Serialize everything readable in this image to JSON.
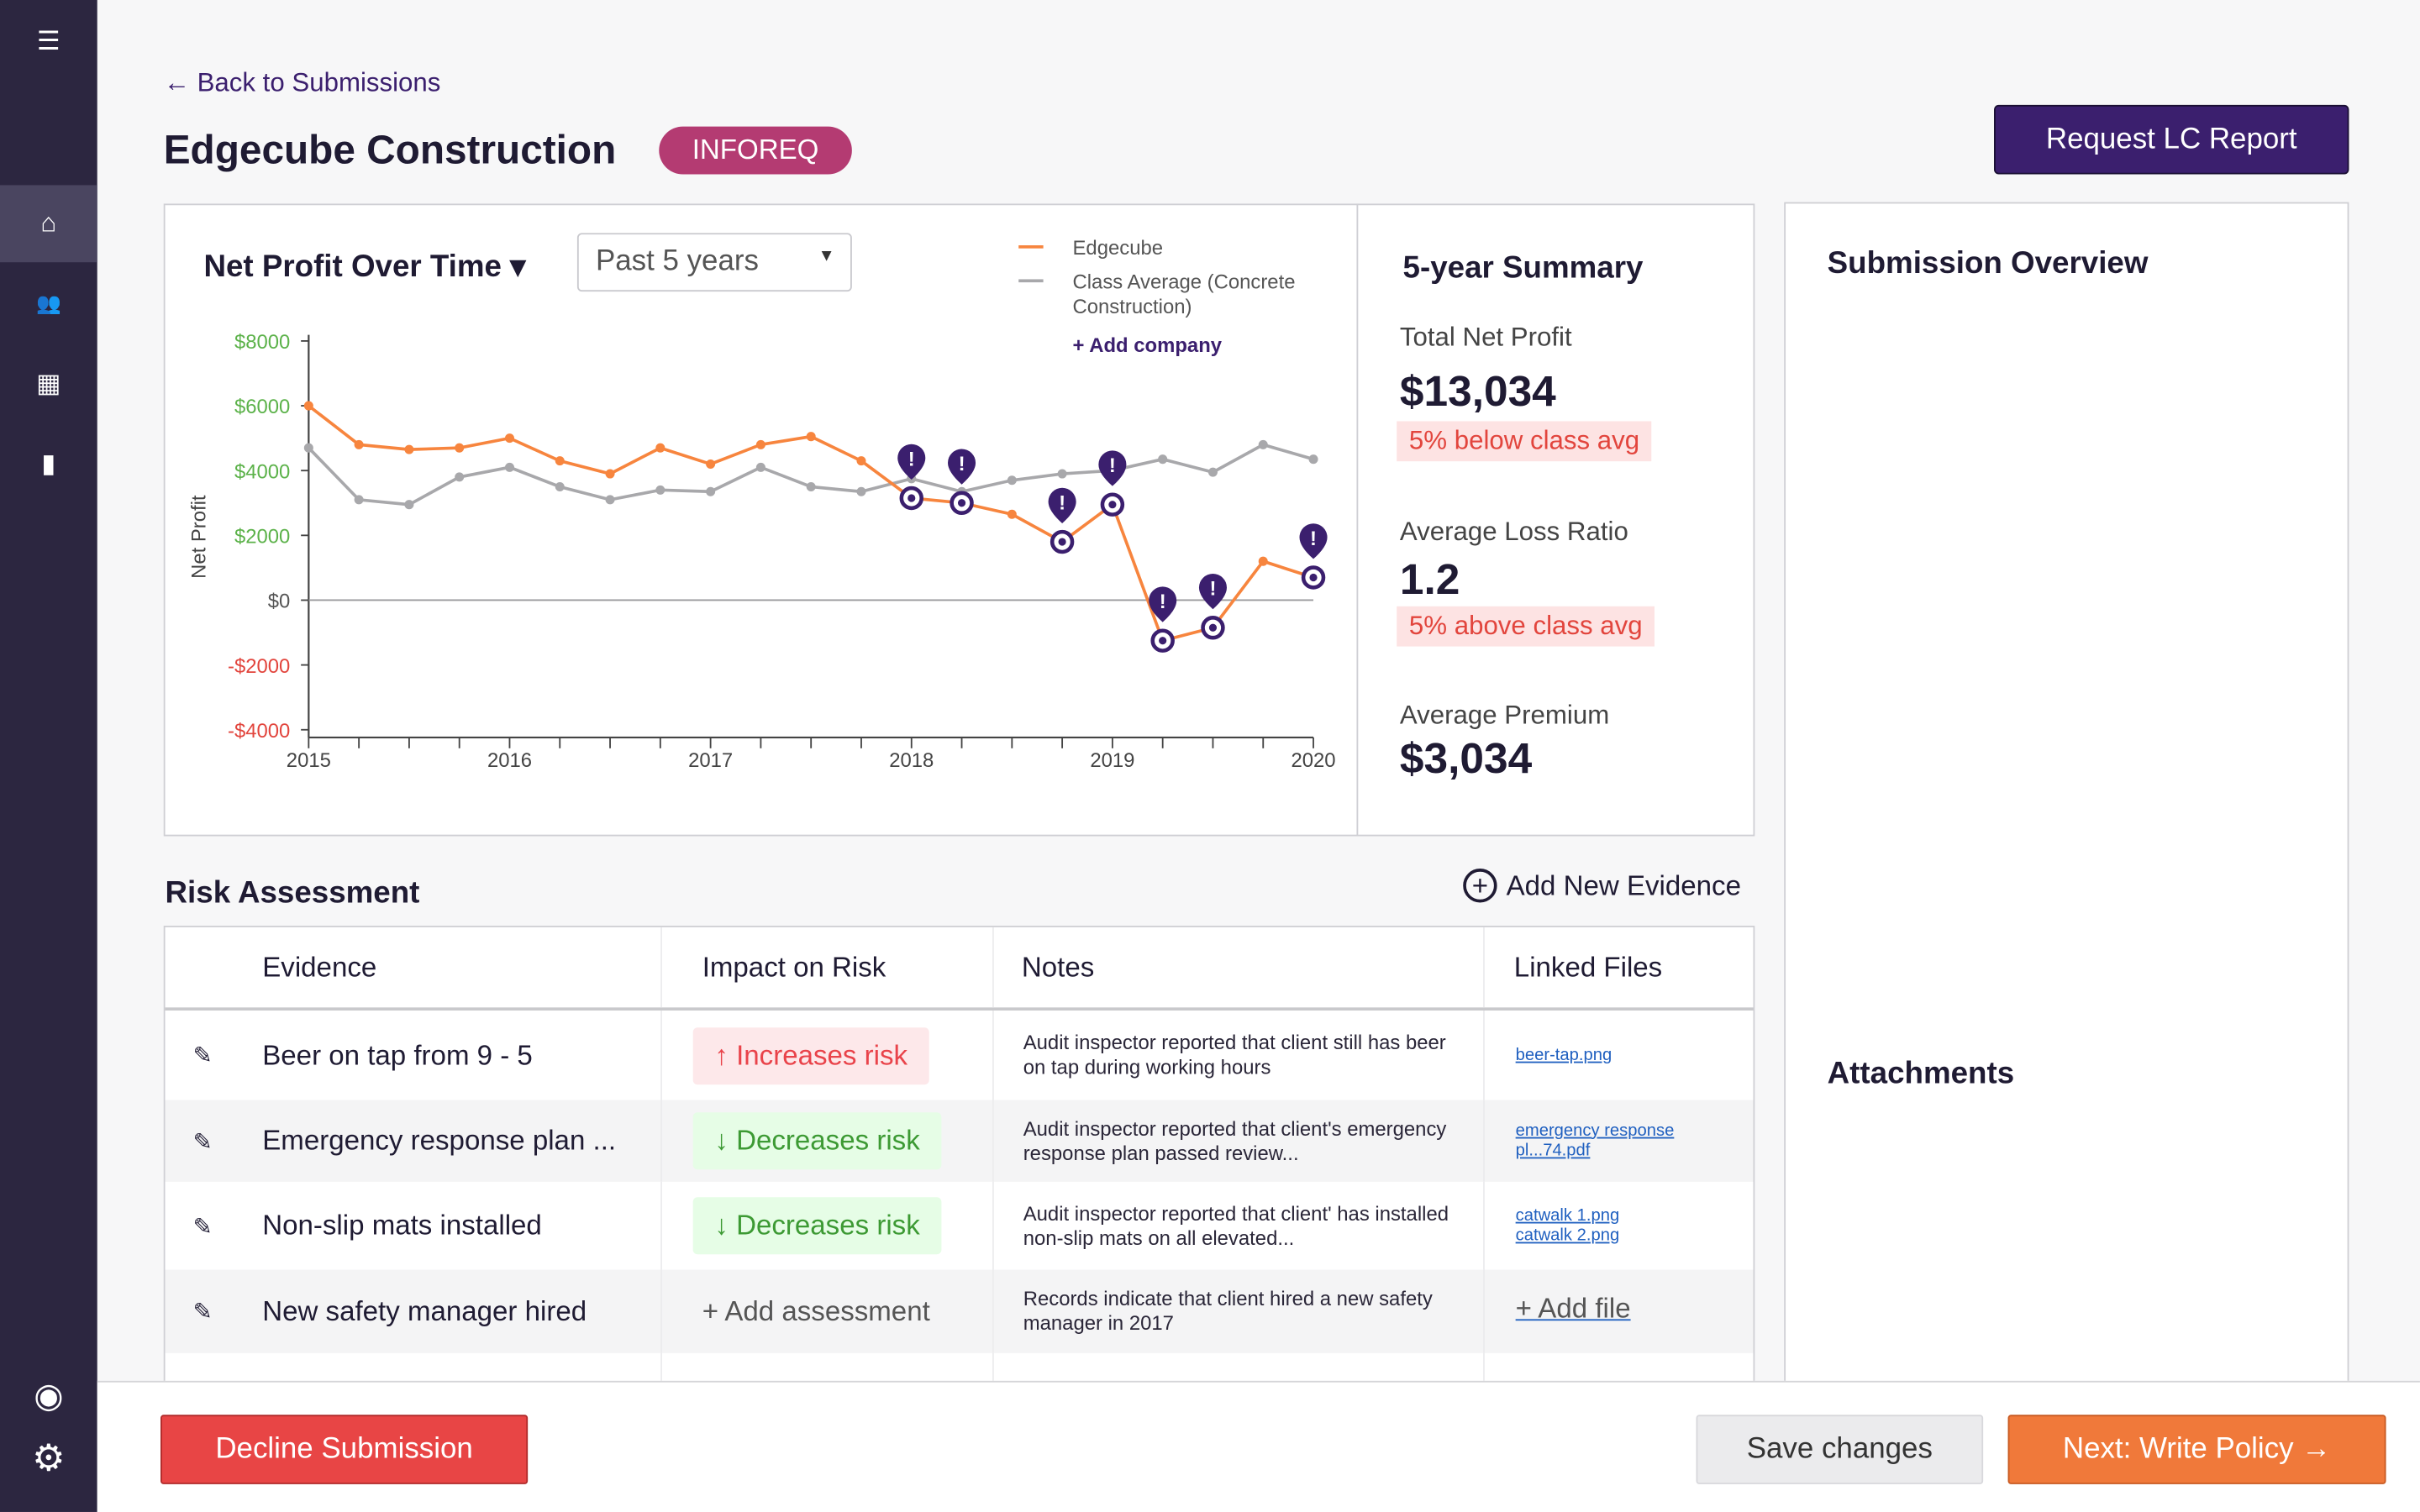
{
  "sidebar": {
    "items": [
      {
        "icon": "menu-icon",
        "glyph": "☰"
      },
      {
        "icon": "home-icon",
        "glyph": "⌂"
      },
      {
        "icon": "users-icon",
        "glyph": "👥"
      },
      {
        "icon": "calculator-icon",
        "glyph": "▦"
      },
      {
        "icon": "clipboard-icon",
        "glyph": "▮"
      }
    ],
    "bottom": [
      {
        "icon": "account-icon",
        "glyph": "◉"
      },
      {
        "icon": "settings-icon",
        "glyph": "⚙"
      }
    ]
  },
  "header": {
    "back_label": "← Back to Submissions",
    "title": "Edgecube Construction",
    "badge": "INFOREQ",
    "request_button": "Request LC Report"
  },
  "chart_panel": {
    "title": "Net Profit Over Time ▾",
    "range_select": "Past 5 years",
    "add_company": "+ Add company"
  },
  "chart_data": {
    "type": "line",
    "ylabel": "Net Profit",
    "ylim": [
      -4250,
      8000
    ],
    "yticks": [
      {
        "value": 8000,
        "label": "$8000"
      },
      {
        "value": 6000,
        "label": "$6000"
      },
      {
        "value": 4000,
        "label": "$4000"
      },
      {
        "value": 2000,
        "label": "$2000"
      },
      {
        "value": 0,
        "label": "$0"
      },
      {
        "value": -2000,
        "label": "-$2000"
      },
      {
        "value": -4000,
        "label": "-$4000"
      }
    ],
    "xticks": [
      "2015",
      "2016",
      "2017",
      "2018",
      "2019",
      "2020"
    ],
    "x": [
      2015,
      2015.25,
      2015.5,
      2015.75,
      2016,
      2016.25,
      2016.5,
      2016.75,
      2017,
      2017.25,
      2017.5,
      2017.75,
      2018,
      2018.25,
      2018.5,
      2018.75,
      2019,
      2019.25,
      2019.5,
      2019.75,
      2020
    ],
    "series": [
      {
        "name": "Edgecube",
        "color": "#f7853e",
        "values": [
          6000,
          4800,
          4650,
          4700,
          5000,
          4300,
          3900,
          4700,
          4200,
          4800,
          5050,
          4300,
          3150,
          3000,
          2650,
          1800,
          2950,
          -1250,
          -850,
          1200,
          700
        ],
        "flagged": [
          12,
          13,
          15,
          16,
          17,
          18,
          20
        ]
      },
      {
        "name": "Class Average (Concrete Construction)",
        "color": "#a8a8ab",
        "values": [
          4700,
          3100,
          2950,
          3800,
          4100,
          3500,
          3100,
          3400,
          3350,
          4100,
          3500,
          3350,
          3750,
          3350,
          3700,
          3900,
          4000,
          4350,
          3950,
          4800,
          4350
        ]
      }
    ],
    "grid": false,
    "legend": "top-right"
  },
  "summary": {
    "title": "5-year Summary",
    "items": [
      {
        "label": "Total Net Profit",
        "value": "$13,034",
        "note": "5% below class avg"
      },
      {
        "label": "Average Loss Ratio",
        "value": "1.2",
        "note": "5% above class avg"
      },
      {
        "label": "Average Premium",
        "value": "$3,034"
      }
    ]
  },
  "overview": {
    "title": "Submission Overview",
    "attachments": "Attachments"
  },
  "risk": {
    "title": "Risk Assessment",
    "add_evidence": "Add New Evidence",
    "columns": [
      "Evidence",
      "Impact on Risk",
      "Notes",
      "Linked Files"
    ],
    "rows": [
      {
        "evidence": "Beer on tap from 9 - 5",
        "impact": "↑ Increases risk",
        "impact_type": "increase",
        "note": "Audit inspector reported that client still has beer on tap during working hours",
        "files": [
          "beer-tap.png"
        ]
      },
      {
        "evidence": "Emergency response plan ...",
        "impact": "↓ Decreases risk",
        "impact_type": "decrease",
        "note": "Audit inspector reported that client's emergency response plan passed review...",
        "files": [
          "emergency response pl...74.pdf"
        ]
      },
      {
        "evidence": "Non-slip mats installed",
        "impact": "↓ Decreases risk",
        "impact_type": "decrease",
        "note": "Audit inspector reported that client' has installed non-slip mats on all elevated...",
        "files": [
          "catwalk 1.png",
          "catwalk 2.png"
        ]
      },
      {
        "evidence": "New safety manager hired",
        "impact": "+ Add assessment",
        "impact_type": "none",
        "note": "Records indicate that client hired a new safety manager in 2017",
        "files": [],
        "add_file": "+ Add file"
      }
    ]
  },
  "footer": {
    "decline": "Decline Submission",
    "save": "Save changes",
    "next": "Next: Write Policy →"
  },
  "colors": {
    "primary": "#3b1f6e",
    "accent": "#f7853e",
    "danger": "#e84545",
    "badge": "#b43b72"
  }
}
